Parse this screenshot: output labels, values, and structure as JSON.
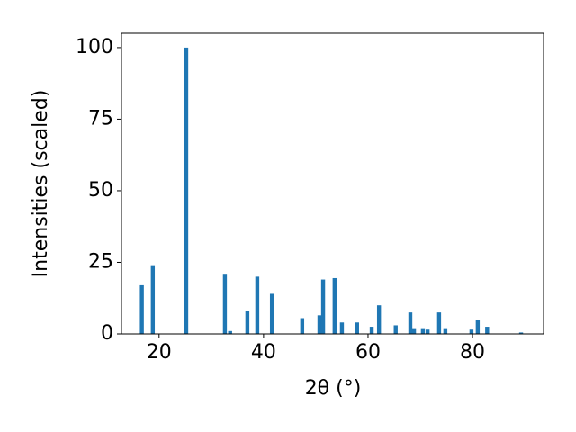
{
  "chart_data": {
    "type": "bar",
    "x_label": "2θ (°)",
    "y_label": "Intensities (scaled)",
    "x": [
      16.7,
      18.8,
      25.2,
      32.6,
      33.6,
      36.9,
      38.8,
      41.6,
      47.4,
      50.7,
      51.4,
      53.6,
      55.0,
      57.9,
      60.7,
      62.1,
      65.3,
      68.1,
      68.8,
      70.5,
      71.4,
      73.6,
      74.8,
      79.8,
      81.0,
      82.8,
      89.3
    ],
    "values": [
      17,
      24,
      100,
      21,
      1,
      8,
      20,
      14,
      5.5,
      6.5,
      19,
      19.5,
      4,
      4,
      2.5,
      10,
      3,
      7.5,
      2,
      2,
      1.5,
      7.5,
      2,
      1.5,
      5,
      2.5,
      0.5
    ],
    "color": "#1f77b4",
    "xlim": [
      12.8,
      93.6
    ],
    "xticks": [
      20,
      40,
      60,
      80
    ],
    "ylim": [
      0,
      105
    ],
    "yticks": [
      0,
      25,
      50,
      75,
      100
    ],
    "grid": false
  }
}
